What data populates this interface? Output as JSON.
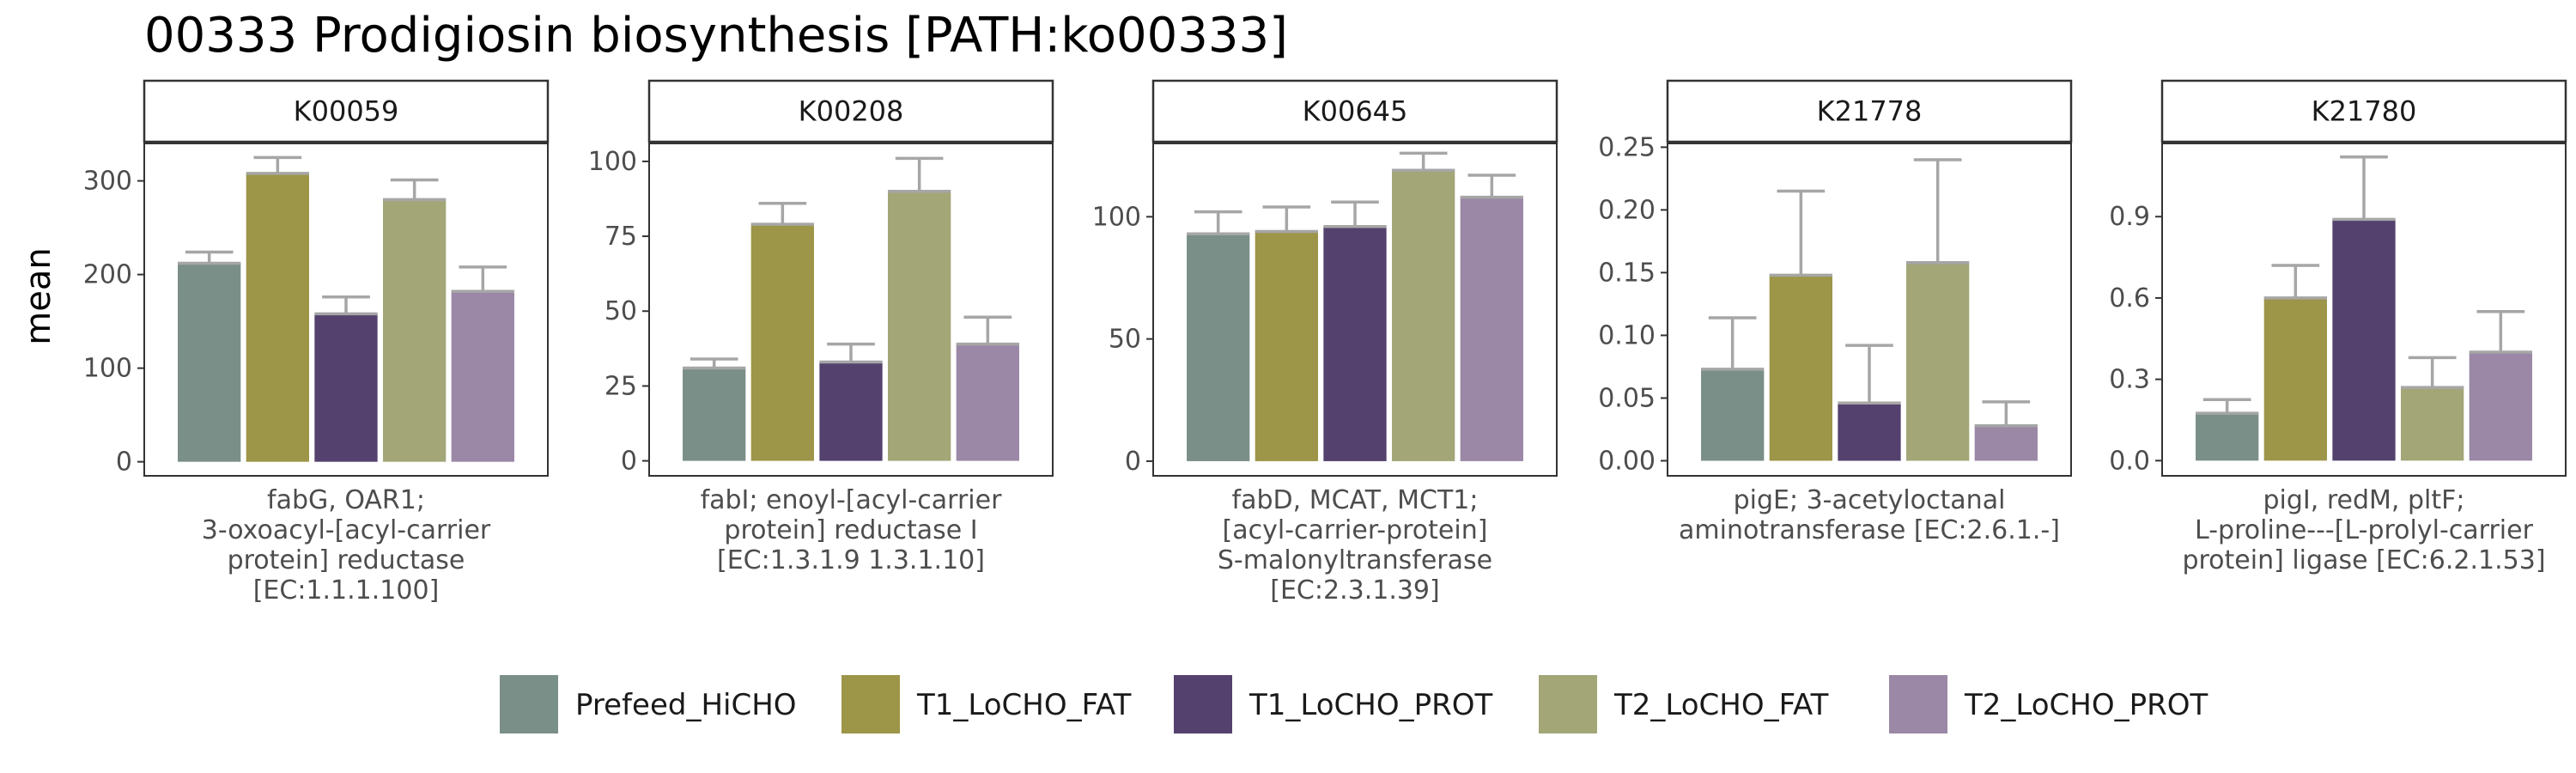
{
  "chart_data": {
    "type": "bar",
    "title": "00333 Prodigiosin biosynthesis [PATH:ko00333]",
    "ylabel": "mean",
    "error_bars": true,
    "legend_position": "bottom",
    "colors": {
      "Prefeed_HiCHO": "#7a8f87",
      "T1_LoCHO_FAT": "#9d9548",
      "T1_LoCHO_PROT": "#54416e",
      "T2_LoCHO_FAT": "#a3a676",
      "T2_LoCHO_PROT": "#9b87a6",
      "error_bar": "#a6a6a6",
      "strip_fill": "#ffffff",
      "panel_border": "#333333"
    },
    "legend": [
      "Prefeed_HiCHO",
      "T1_LoCHO_FAT",
      "T1_LoCHO_PROT",
      "T2_LoCHO_FAT",
      "T2_LoCHO_PROT"
    ],
    "panels": [
      {
        "id": "K00059",
        "description": [
          "fabG, OAR1;",
          "3-oxoacyl-[acyl-carrier",
          "protein] reductase",
          "[EC:1.1.1.100]"
        ],
        "ylim": [
          -15,
          340
        ],
        "yticks": [
          0,
          100,
          200,
          300
        ],
        "ytick_labels": [
          "0",
          "100",
          "200",
          "300"
        ],
        "values": [
          212,
          308,
          158,
          280,
          182
        ],
        "errors": [
          12,
          17,
          18,
          21,
          26
        ]
      },
      {
        "id": "K00208",
        "description": [
          "fabI; enoyl-[acyl-carrier",
          "protein] reductase I",
          "[EC:1.3.1.9 1.3.1.10]"
        ],
        "ylim": [
          -5,
          106
        ],
        "yticks": [
          0,
          25,
          50,
          75,
          100
        ],
        "ytick_labels": [
          "0",
          "25",
          "50",
          "75",
          "100"
        ],
        "values": [
          31,
          79,
          33,
          90,
          39
        ],
        "errors": [
          3,
          7,
          6,
          11,
          9
        ]
      },
      {
        "id": "K00645",
        "description": [
          "fabD, MCAT, MCT1;",
          "[acyl-carrier-protein]",
          "S-malonyltransferase",
          "[EC:2.3.1.39]"
        ],
        "ylim": [
          -6,
          130
        ],
        "yticks": [
          0,
          50,
          100
        ],
        "ytick_labels": [
          "0",
          "50",
          "100"
        ],
        "values": [
          93,
          94,
          96,
          119,
          108
        ],
        "errors": [
          9,
          10,
          10,
          7,
          9
        ]
      },
      {
        "id": "K21778",
        "description": [
          "pigE; 3-acetyloctanal",
          "aminotransferase [EC:2.6.1.-]"
        ],
        "ylim": [
          -0.012,
          0.253
        ],
        "yticks": [
          0,
          0.05,
          0.1,
          0.15,
          0.2,
          0.25
        ],
        "ytick_labels": [
          "0.00",
          "0.05",
          "0.10",
          "0.15",
          "0.20",
          "0.25"
        ],
        "values": [
          0.073,
          0.148,
          0.046,
          0.158,
          0.028
        ],
        "errors": [
          0.041,
          0.067,
          0.046,
          0.082,
          0.019
        ]
      },
      {
        "id": "K21780",
        "description": [
          "pigI, redM, pltF;",
          "L-proline---[L-prolyl-carrier",
          "protein] ligase [EC:6.2.1.53]"
        ],
        "ylim": [
          -0.056,
          1.17
        ],
        "yticks": [
          0,
          0.3,
          0.6,
          0.9
        ],
        "ytick_labels": [
          "0.0",
          "0.3",
          "0.6",
          "0.9"
        ],
        "values": [
          0.175,
          0.6,
          0.89,
          0.27,
          0.4
        ],
        "errors": [
          0.05,
          0.12,
          0.23,
          0.11,
          0.15
        ]
      }
    ]
  }
}
